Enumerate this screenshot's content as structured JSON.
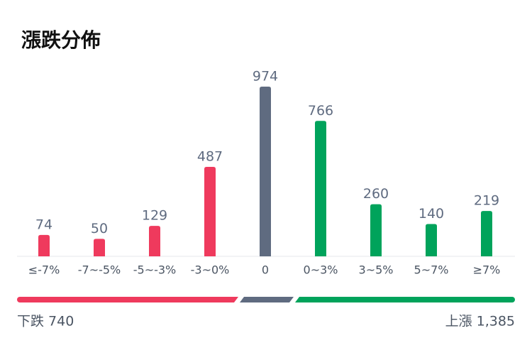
{
  "chart_data": {
    "type": "bar",
    "title": "漲跌分佈",
    "categories": [
      "≤-7%",
      "-7~-5%",
      "-5~-3%",
      "-3~0%",
      "0",
      "0~3%",
      "3~5%",
      "5~7%",
      "≥7%"
    ],
    "values": [
      74,
      50,
      129,
      487,
      974,
      766,
      260,
      140,
      219
    ],
    "colors": [
      "#ef3a5d",
      "#ef3a5d",
      "#ef3a5d",
      "#ef3a5d",
      "#5f6b80",
      "#00a35b",
      "#00a35b",
      "#00a35b",
      "#00a35b"
    ],
    "footer": {
      "left": "下跌 740",
      "right": "上漲 1,385"
    }
  }
}
